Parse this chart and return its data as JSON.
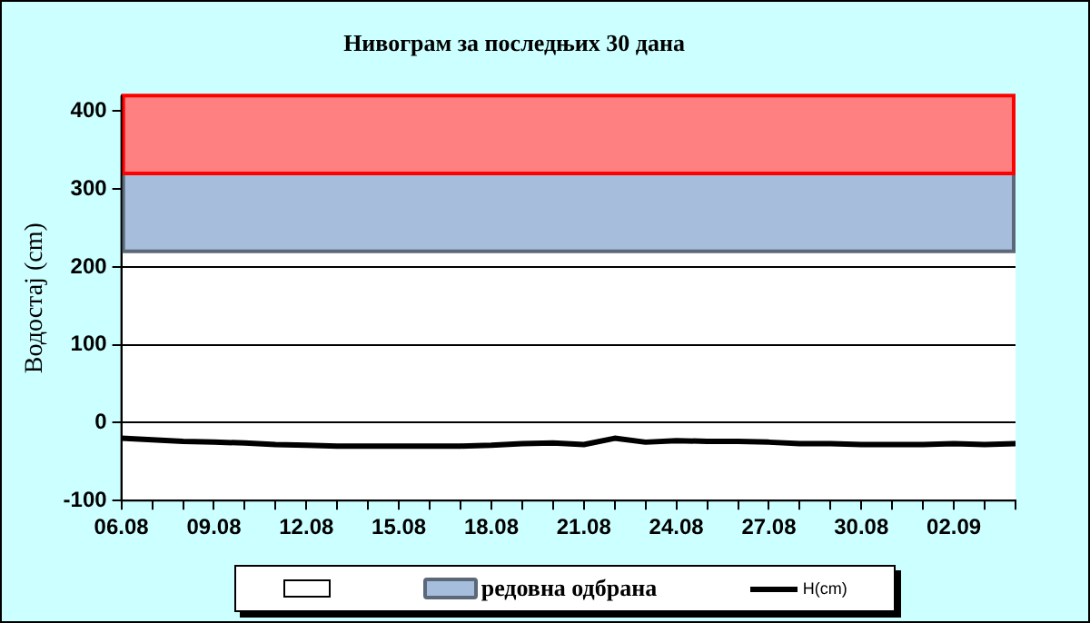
{
  "chart_data": {
    "type": "line",
    "title": "Нивограм за последњих 30 дана",
    "ylabel": "Водостај (cm)",
    "x": [
      "--08-06",
      "--08-07",
      "--08-08",
      "--08-09",
      "--08-10",
      "--08-11",
      "--08-12",
      "--08-13",
      "--08-14",
      "--08-15",
      "--08-16",
      "--08-17",
      "--08-18",
      "--08-19",
      "--08-20",
      "--08-21",
      "--08-22",
      "--08-23",
      "--08-24",
      "--08-25",
      "--08-26",
      "--08-27",
      "--08-28",
      "--08-29",
      "--08-30",
      "--08-31",
      "--09-01",
      "--09-02",
      "--09-03",
      "--09-04"
    ],
    "series": [
      {
        "name": "H(cm)",
        "color": "#000000",
        "values": [
          -20,
          -22,
          -24,
          -25,
          -26,
          -28,
          -29,
          -30,
          -30,
          -30,
          -30,
          -30,
          -29,
          -27,
          -26,
          -28,
          -20,
          -25,
          -23,
          -24,
          -24,
          -25,
          -27,
          -27,
          -28,
          -28,
          -28,
          -27,
          -28,
          -27
        ]
      }
    ],
    "xlim": [
      "--08-06",
      "--09-04"
    ],
    "xticks": [
      {
        "value": "--08-06",
        "label": "06.08"
      },
      {
        "value": "--08-07",
        "label": null
      },
      {
        "value": "--08-08",
        "label": null
      },
      {
        "value": "--08-09",
        "label": "09.08"
      },
      {
        "value": "--08-10",
        "label": null
      },
      {
        "value": "--08-11",
        "label": null
      },
      {
        "value": "--08-12",
        "label": "12.08"
      },
      {
        "value": "--08-13",
        "label": null
      },
      {
        "value": "--08-14",
        "label": null
      },
      {
        "value": "--08-15",
        "label": "15.08"
      },
      {
        "value": "--08-16",
        "label": null
      },
      {
        "value": "--08-17",
        "label": null
      },
      {
        "value": "--08-18",
        "label": "18.08"
      },
      {
        "value": "--08-19",
        "label": null
      },
      {
        "value": "--08-20",
        "label": null
      },
      {
        "value": "--08-21",
        "label": "21.08"
      },
      {
        "value": "--08-22",
        "label": null
      },
      {
        "value": "--08-23",
        "label": null
      },
      {
        "value": "--08-24",
        "label": "24.08"
      },
      {
        "value": "--08-25",
        "label": null
      },
      {
        "value": "--08-26",
        "label": null
      },
      {
        "value": "--08-27",
        "label": "27.08"
      },
      {
        "value": "--08-28",
        "label": null
      },
      {
        "value": "--08-29",
        "label": null
      },
      {
        "value": "--08-30",
        "label": "30.08"
      },
      {
        "value": "--08-31",
        "label": null
      },
      {
        "value": "--09-01",
        "label": null
      },
      {
        "value": "--09-02",
        "label": "02.09"
      },
      {
        "value": "--09-03",
        "label": null
      },
      {
        "value": "--09-04",
        "label": null
      }
    ],
    "ylim": [
      -100,
      420
    ],
    "yticks": [
      -100,
      0,
      100,
      200,
      300,
      400
    ],
    "bands": [
      {
        "axis": "y",
        "from": 220,
        "to": 320,
        "label": "редовна одбрана",
        "color": "#a6bddb"
      },
      {
        "axis": "y",
        "from": 320,
        "to": 420,
        "color": "#ff8080"
      }
    ],
    "grid": "y",
    "legend": "bottom",
    "marker": "none",
    "line_style": "solid"
  }
}
